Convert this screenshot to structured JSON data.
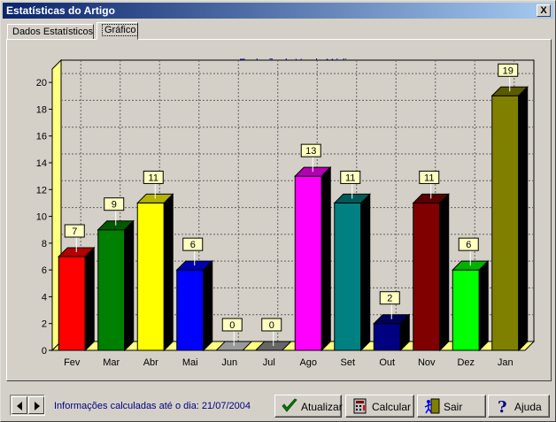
{
  "window": {
    "title": "Estatísticas do Artigo",
    "close_label": "X"
  },
  "tabs": [
    {
      "label": "Dados Estatísticos"
    },
    {
      "label": "Gráfico"
    }
  ],
  "footer": {
    "info": "Informações calculadas até o dia: 21/07/2004"
  },
  "buttons": {
    "atualizar": "Atualizar",
    "calcular": "Calcular",
    "sair": "Sair",
    "ajuda": "Ajuda"
  },
  "chart_data": {
    "type": "bar",
    "title": "Evolução da Venda Média",
    "categories": [
      "Fev",
      "Mar",
      "Abr",
      "Mai",
      "Jun",
      "Jul",
      "Ago",
      "Set",
      "Out",
      "Nov",
      "Dez",
      "Jan"
    ],
    "values": [
      7,
      9,
      11,
      6,
      0,
      0,
      13,
      11,
      2,
      11,
      6,
      19
    ],
    "colors": [
      "#ff0000",
      "#008000",
      "#ffff00",
      "#0000ff",
      "#c0c0c0",
      "#808080",
      "#ff00ff",
      "#008080",
      "#000080",
      "#800000",
      "#00ff00",
      "#808000"
    ],
    "yticks": [
      0,
      2,
      4,
      6,
      8,
      10,
      12,
      14,
      16,
      18,
      20
    ],
    "ylim": [
      0,
      21
    ],
    "grid": true,
    "xlabel": "",
    "ylabel": ""
  }
}
